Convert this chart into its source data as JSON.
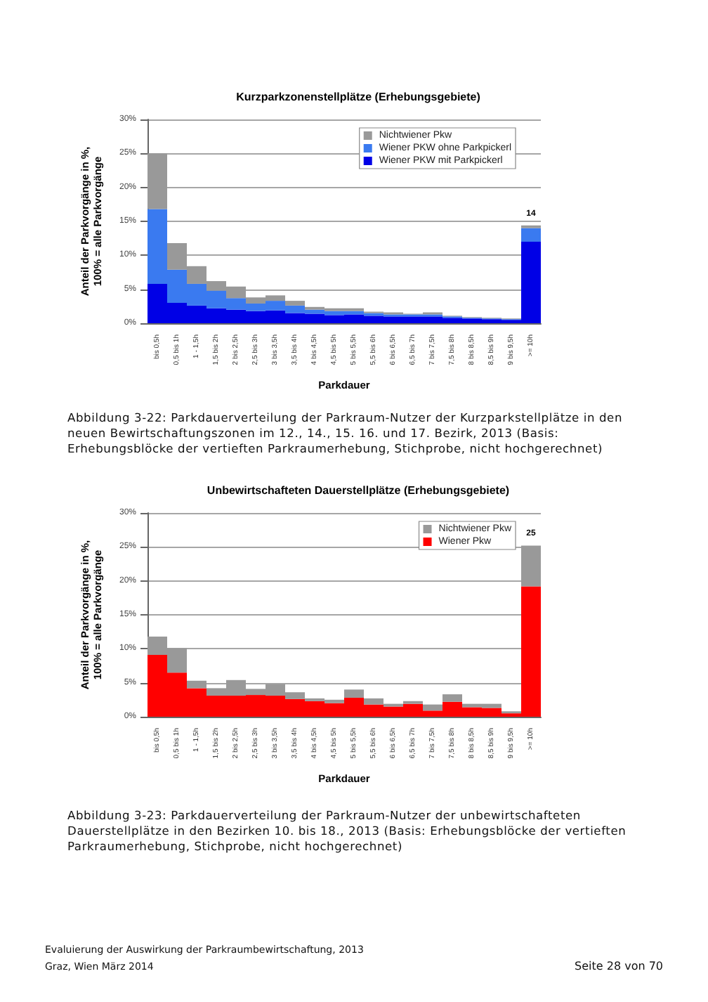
{
  "chart_data": [
    {
      "type": "bar",
      "title": "Kurzparkzonenstellplätze (Erhebungsgebiete)",
      "xlabel": "Parkdauer",
      "ylabel": "Anteil der Parkvorgänge in %,\n100% = alle Parkvorgänge",
      "categories": [
        "bis 0,5h",
        "0,5 bis 1h",
        "1 - 1,5h",
        "1,5 bis 2h",
        "2 bis 2,5h",
        "2,5 bis 3h",
        "3 bis 3,5h",
        "3,5 bis 4h",
        "4 bis 4,5h",
        "4,5 bis 5h",
        "5 bis 5,5h",
        "5,5 bis 6h",
        "6 bis 6,5h",
        "6,5 bis 7h",
        "7 bis 7,5h",
        "7,5 bis 8h",
        "8 bis 8,5h",
        "8,5 bis 9h",
        "9 bis 9,5h",
        ">= 10h"
      ],
      "series": [
        {
          "name": "Wiener PKW mit Parkpickerl",
          "color": "#0000e6",
          "values": [
            5.8,
            3.0,
            2.6,
            2.2,
            2.0,
            1.8,
            1.9,
            1.5,
            1.4,
            1.2,
            1.3,
            1.1,
            1.0,
            1.0,
            1.0,
            0.8,
            0.7,
            0.6,
            0.5,
            12.0
          ]
        },
        {
          "name": "Wiener PKW ohne Parkpickerl",
          "color": "#3a7af0",
          "values": [
            11.0,
            4.9,
            3.2,
            2.6,
            1.7,
            1.1,
            1.4,
            1.1,
            0.6,
            0.6,
            0.5,
            0.4,
            0.3,
            0.3,
            0.3,
            0.2,
            0.1,
            0.1,
            0.1,
            2.0
          ]
        },
        {
          "name": "Nichtwiener Pkw",
          "color": "#999999",
          "values": [
            8.2,
            3.9,
            2.6,
            1.4,
            1.7,
            0.9,
            0.8,
            0.7,
            0.4,
            0.4,
            0.4,
            0.2,
            0.3,
            0.1,
            0.3,
            0.1,
            0.1,
            0.1,
            0.1,
            0.4
          ]
        }
      ],
      "stacked": true,
      "totals": [
        null,
        null,
        null,
        null,
        null,
        null,
        null,
        null,
        null,
        null,
        null,
        null,
        null,
        null,
        null,
        null,
        null,
        null,
        null,
        "14"
      ],
      "ylim": [
        0,
        30
      ],
      "yticks": [
        {
          "value": 0,
          "label": "0%"
        },
        {
          "value": 5,
          "label": "5%"
        },
        {
          "value": 10,
          "label": "10%"
        },
        {
          "value": 15,
          "label": "15%"
        },
        {
          "value": 20,
          "label": "20%"
        },
        {
          "value": 25,
          "label": "25%"
        },
        {
          "value": 30,
          "label": "30%"
        }
      ],
      "grid": "y",
      "legend": "top right",
      "annotations": [
        "Abbildung 3-22: Parkdauerverteilung der Parkraum-Nutzer der Kurzparkstellplätze in den neuen Bewirtschaftungszonen im 12., 14., 15. 16. und 17. Bezirk, 2013 (Basis: Erhebungsblöcke der vertieften Parkraumerhebung, Stichprobe, nicht hochgerechnet)"
      ]
    },
    {
      "type": "bar",
      "title": "Unbewirtschafteten Dauerstellplätze (Erhebungsgebiete)",
      "xlabel": "Parkdauer",
      "ylabel": "Anteil der Parkvorgänge in %,\n100% = alle Parkvorgänge",
      "categories": [
        "bis 0,5h",
        "0,5 bis 1h",
        "1 - 1,5h",
        "1,5 bis 2h",
        "2 bis 2,5h",
        "2,5 bis 3h",
        "3 bis 3,5h",
        "3,5 bis 4h",
        "4 bis 4,5h",
        "4,5 bis 5h",
        "5 bis 5,5h",
        "5,5 bis 6h",
        "6 bis 6,5h",
        "6,5 bis 7h",
        "7 bis 7,5h",
        "7,5 bis 8h",
        "8 bis 8,5h",
        "8,5 bis 9h",
        "9 bis 9,5h",
        ">= 10h"
      ],
      "series": [
        {
          "name": "Wiener Pkw",
          "color": "#ff0000",
          "values": [
            9.1,
            6.5,
            4.2,
            3.1,
            3.1,
            3.2,
            3.1,
            2.6,
            2.3,
            2.0,
            2.8,
            1.8,
            1.5,
            1.9,
            0.9,
            2.2,
            1.4,
            1.3,
            0.5,
            19.2
          ]
        },
        {
          "name": "Nichtwiener Pkw",
          "color": "#999999",
          "values": [
            2.7,
            3.6,
            1.1,
            1.1,
            2.3,
            0.9,
            1.7,
            1.0,
            0.4,
            0.5,
            1.2,
            0.9,
            0.4,
            0.4,
            0.9,
            1.1,
            0.5,
            0.6,
            0.3,
            6.0
          ]
        }
      ],
      "stacked": true,
      "totals": [
        null,
        null,
        null,
        null,
        null,
        null,
        null,
        null,
        null,
        null,
        null,
        null,
        null,
        null,
        null,
        null,
        null,
        null,
        null,
        "25"
      ],
      "ylim": [
        0,
        30
      ],
      "yticks": [
        {
          "value": 0,
          "label": "0%"
        },
        {
          "value": 5,
          "label": "5%"
        },
        {
          "value": 10,
          "label": "10%"
        },
        {
          "value": 15,
          "label": "15%"
        },
        {
          "value": 20,
          "label": "20%"
        },
        {
          "value": 25,
          "label": "25%"
        },
        {
          "value": 30,
          "label": "30%"
        }
      ],
      "grid": "y",
      "legend": "top right",
      "annotations": [
        "Abbildung 3-23: Parkdauerverteilung der Parkraum-Nutzer der unbewirtschafteten Dauerstellplätze in den Bezirken 10. bis 18., 2013 (Basis: Erhebungsblöcke der vertieften Parkraumerhebung, Stichprobe, nicht hochgerechnet)",
        "Evaluierung der Auswirkung der Parkraumbewirtschaftung, 2013",
        "Graz, Wien März 2014",
        "Seite 28 von 70"
      ]
    }
  ]
}
